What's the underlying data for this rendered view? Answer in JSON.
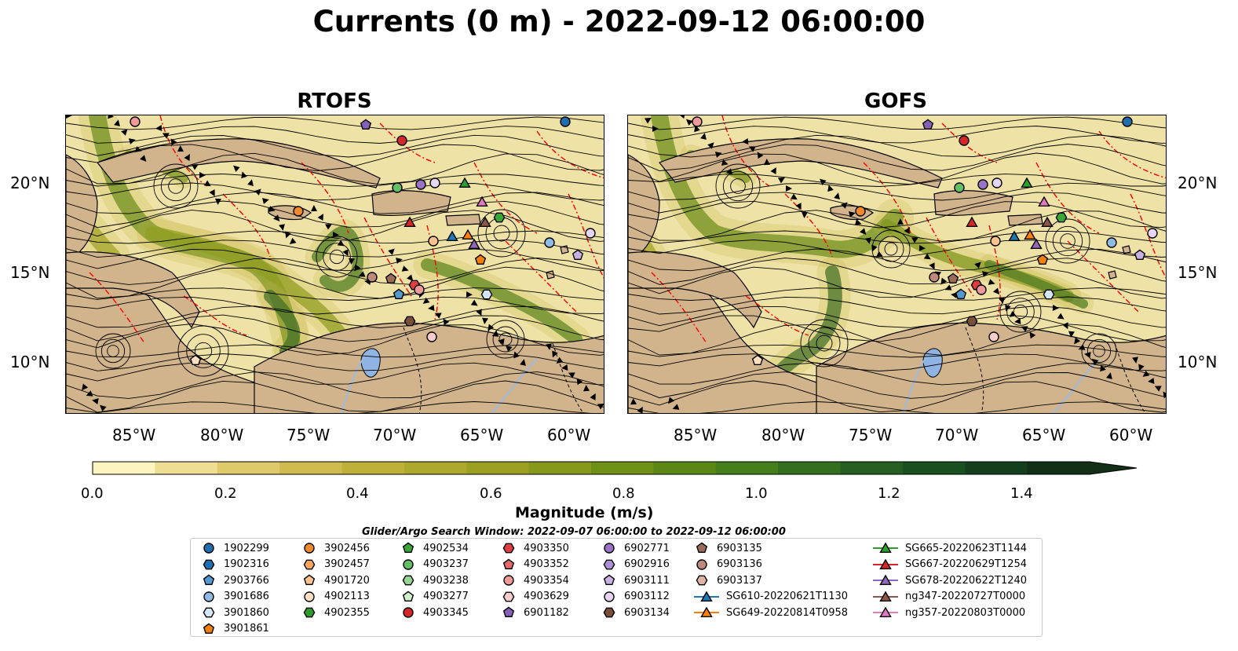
{
  "title": "Currents (0 m) - 2022-09-12 06:00:00",
  "panels": [
    {
      "title": "RTOFS"
    },
    {
      "title": "GOFS"
    }
  ],
  "axes": {
    "lon_ticks": [
      "85°W",
      "80°W",
      "75°W",
      "70°W",
      "65°W",
      "60°W"
    ],
    "lat_ticks": [
      "20°N",
      "15°N",
      "10°N"
    ]
  },
  "colorbar": {
    "label": "Magnitude (m/s)",
    "ticks": [
      "0.0",
      "0.2",
      "0.4",
      "0.6",
      "0.8",
      "1.0",
      "1.2",
      "1.4"
    ],
    "colors": [
      "#fdf5c0",
      "#eedd93",
      "#dfca6a",
      "#cfbb4d",
      "#bfb03a",
      "#aea92e",
      "#9ba023",
      "#86991b",
      "#6f9016",
      "#5a8716",
      "#467e1b",
      "#346f1f",
      "#245f21",
      "#1a4f20",
      "#153f1c",
      "#122f18"
    ],
    "extend": "max"
  },
  "map_colors": {
    "land": "#d2b48c",
    "lake": "#8fb4e3",
    "river": "#9dbbe0",
    "boundary": "#ff0000"
  },
  "legend": {
    "title": "Glider/Argo Search Window: 2022-09-07 06:00:00 to 2022-09-12 06:00:00",
    "columns": [
      [
        {
          "label": "1902299",
          "marker": "circle",
          "color": "#1f6fb0"
        },
        {
          "label": "1902316",
          "marker": "hexagon",
          "color": "#1f6fb0"
        },
        {
          "label": "2903766",
          "marker": "pentagon",
          "color": "#5598cf"
        },
        {
          "label": "3901686",
          "marker": "circle",
          "color": "#8dbbe3"
        },
        {
          "label": "3901860",
          "marker": "hexagon",
          "color": "#d3e6f5"
        },
        {
          "label": "3901861",
          "marker": "pentagon",
          "color": "#f07f0e"
        }
      ],
      [
        {
          "label": "3902456",
          "marker": "circle",
          "color": "#f28a2c"
        },
        {
          "label": "3902457",
          "marker": "hexagon",
          "color": "#f7a45c"
        },
        {
          "label": "4901720",
          "marker": "pentagon",
          "color": "#f9c28f"
        },
        {
          "label": "4902113",
          "marker": "circle",
          "color": "#fde0c2"
        },
        {
          "label": "4902355",
          "marker": "hexagon",
          "color": "#2c9a2c"
        }
      ],
      [
        {
          "label": "4902534",
          "marker": "pentagon",
          "color": "#3aa63a"
        },
        {
          "label": "4903237",
          "marker": "circle",
          "color": "#63bf63"
        },
        {
          "label": "4903238",
          "marker": "hexagon",
          "color": "#97d597"
        },
        {
          "label": "4903277",
          "marker": "pentagon",
          "color": "#d2f0cd"
        },
        {
          "label": "4903345",
          "marker": "circle",
          "color": "#d62728"
        }
      ],
      [
        {
          "label": "4903350",
          "marker": "hexagon",
          "color": "#de3e3f"
        },
        {
          "label": "4903352",
          "marker": "pentagon",
          "color": "#e46a6a"
        },
        {
          "label": "4903354",
          "marker": "circle",
          "color": "#ef9a9a"
        },
        {
          "label": "4903629",
          "marker": "hexagon",
          "color": "#f7cccc"
        },
        {
          "label": "6901182",
          "marker": "pentagon",
          "color": "#8660b8"
        }
      ],
      [
        {
          "label": "6902771",
          "marker": "circle",
          "color": "#9a72c7"
        },
        {
          "label": "6902916",
          "marker": "hexagon",
          "color": "#b08fd6"
        },
        {
          "label": "6903111",
          "marker": "pentagon",
          "color": "#c8b0e3"
        },
        {
          "label": "6903112",
          "marker": "circle",
          "color": "#e6d6f3"
        },
        {
          "label": "6903134",
          "marker": "hexagon",
          "color": "#7a4f3a"
        }
      ],
      [
        {
          "label": "6903135",
          "marker": "pentagon",
          "color": "#9a6b55"
        },
        {
          "label": "6903136",
          "marker": "circle",
          "color": "#c08a7b"
        },
        {
          "label": "6903137",
          "marker": "hexagon",
          "color": "#ddb3a6"
        },
        {
          "label": "SG610-20220621T1130",
          "marker": "triangle",
          "color": "#1f77b4",
          "line": true
        },
        {
          "label": "SG649-20220814T0958",
          "marker": "triangle",
          "color": "#ff7f0e",
          "line": true
        }
      ],
      [
        {
          "label": "SG665-20220623T1144",
          "marker": "triangle",
          "color": "#2ca02c",
          "line": true
        },
        {
          "label": "SG667-20220629T1254",
          "marker": "triangle",
          "color": "#d62728",
          "line": true
        },
        {
          "label": "SG678-20220622T1240",
          "marker": "triangle",
          "color": "#9467bd",
          "line": true
        },
        {
          "label": "ng347-20220727T0000",
          "marker": "triangle",
          "color": "#8c564b",
          "line": true
        },
        {
          "label": "ng357-20220803T0000",
          "marker": "triangle",
          "color": "#e377c2",
          "line": true
        }
      ]
    ]
  }
}
